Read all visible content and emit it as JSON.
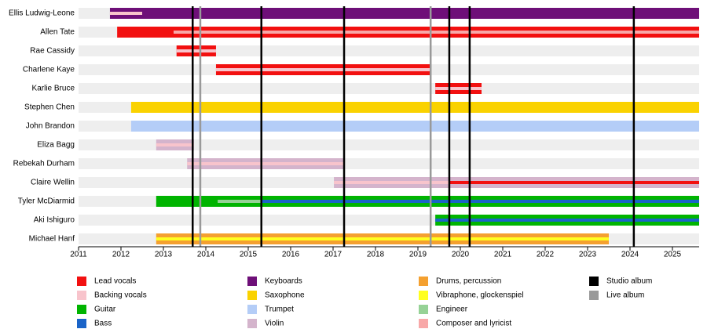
{
  "chart_data": {
    "type": "timeline",
    "categories": [
      "Ellis Ludwig-Leone",
      "Allen Tate",
      "Rae Cassidy",
      "Charlene Kaye",
      "Karlie Bruce",
      "Stephen Chen",
      "John Brandon",
      "Eliza Bagg",
      "Rebekah Durham",
      "Claire Wellin",
      "Tyler McDiarmid",
      "Aki Ishiguro",
      "Michael Hanf"
    ],
    "roles": [
      {
        "name": "Lead vocals",
        "color": "#f21010"
      },
      {
        "name": "Backing vocals",
        "color": "#f8c4cc"
      },
      {
        "name": "Guitar",
        "color": "#00b400"
      },
      {
        "name": "Bass",
        "color": "#1a64c8"
      },
      {
        "name": "Keyboards",
        "color": "#6e0f78"
      },
      {
        "name": "Saxophone",
        "color": "#fad200"
      },
      {
        "name": "Trumpet",
        "color": "#b4cdf7"
      },
      {
        "name": "Violin",
        "color": "#d4b4cc"
      },
      {
        "name": "Drums, percussion",
        "color": "#f4a030"
      },
      {
        "name": "Vibraphone, glockenspiel",
        "color": "#ffff1e"
      },
      {
        "name": "Engineer",
        "color": "#96d296"
      },
      {
        "name": "Composer and lyricist",
        "color": "#f8a8a8"
      }
    ],
    "bars": [
      [
        {
          "role": 4,
          "start": 2011.74,
          "end": 2025.63
        }
      ],
      [
        {
          "role": 0,
          "start": 2011.91,
          "end": 2025.63
        }
      ],
      [
        {
          "role": 0,
          "start": 2013.31,
          "end": 2014.24
        }
      ],
      [
        {
          "role": 0,
          "start": 2014.24,
          "end": 2019.31
        }
      ],
      [
        {
          "role": 0,
          "start": 2019.41,
          "end": 2020.5
        }
      ],
      [
        {
          "role": 5,
          "start": 2012.24,
          "end": 2025.63
        }
      ],
      [
        {
          "role": 6,
          "start": 2012.24,
          "end": 2025.63
        }
      ],
      [
        {
          "role": 7,
          "start": 2012.83,
          "end": 2013.72
        }
      ],
      [
        {
          "role": 7,
          "start": 2013.56,
          "end": 2017.26
        }
      ],
      [
        {
          "role": 7,
          "start": 2017.02,
          "end": 2025.63
        }
      ],
      [
        {
          "role": 2,
          "start": 2012.83,
          "end": 2025.63
        }
      ],
      [
        {
          "role": 2,
          "start": 2019.41,
          "end": 2025.63
        }
      ],
      [
        {
          "role": 8,
          "start": 2012.83,
          "end": 2023.5
        }
      ]
    ],
    "stripes": [
      [
        {
          "role": 1,
          "start": 2011.74,
          "end": 2012.5
        }
      ],
      [
        {
          "role": 11,
          "start": 2013.24,
          "end": 2025.63
        }
      ],
      [
        {
          "role": 1,
          "start": 2013.31,
          "end": 2014.24
        }
      ],
      [
        {
          "role": 1,
          "start": 2014.24,
          "end": 2019.31
        }
      ],
      [
        {
          "role": 1,
          "start": 2019.41,
          "end": 2020.5
        }
      ],
      [],
      [],
      [
        {
          "role": 1,
          "start": 2012.83,
          "end": 2013.72
        }
      ],
      [
        {
          "role": 1,
          "start": 2013.56,
          "end": 2017.26
        }
      ],
      [
        {
          "role": 1,
          "start": 2017.02,
          "end": 2019.74
        },
        {
          "role": 0,
          "start": 2019.74,
          "end": 2025.63
        }
      ],
      [
        {
          "role": 10,
          "start": 2014.28,
          "end": 2015.31
        },
        {
          "role": 3,
          "start": 2015.31,
          "end": 2025.63
        }
      ],
      [
        {
          "role": 3,
          "start": 2019.41,
          "end": 2025.63
        }
      ],
      [
        {
          "role": 9,
          "start": 2012.83,
          "end": 2023.5
        }
      ]
    ],
    "albums": [
      {
        "name": "Studio album",
        "color": "#000000",
        "x": [
          2013.69,
          2015.31,
          2017.26,
          2019.74,
          2020.22,
          2024.09
        ]
      },
      {
        "name": "Live album",
        "color": "#999999",
        "x": [
          2013.87,
          2019.3
        ]
      }
    ],
    "xlim": [
      2011,
      2025.63
    ],
    "xticks": [
      2011,
      2012,
      2013,
      2014,
      2015,
      2016,
      2017,
      2018,
      2019,
      2020,
      2021,
      2022,
      2023,
      2024,
      2025
    ]
  }
}
